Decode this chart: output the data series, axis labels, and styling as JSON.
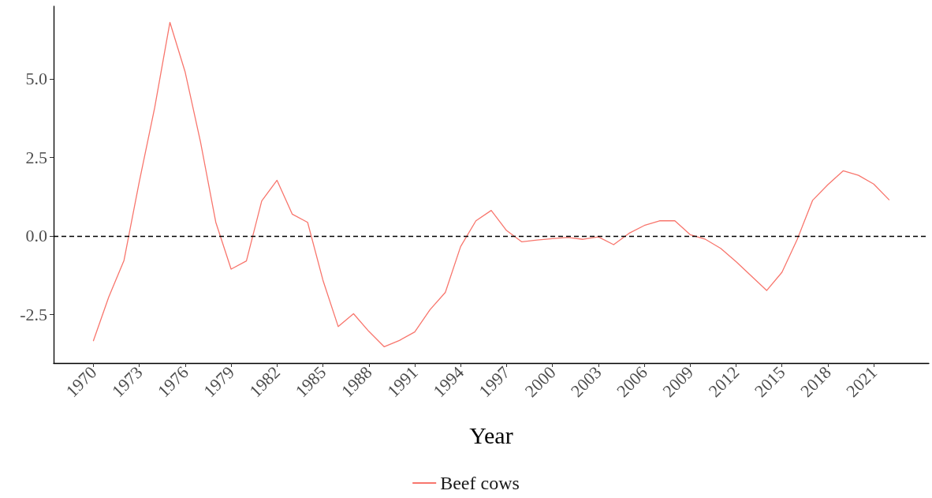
{
  "chart_data": {
    "type": "line",
    "xlabel": "Year",
    "x": [
      1970,
      1971,
      1972,
      1973,
      1974,
      1975,
      1976,
      1977,
      1978,
      1979,
      1980,
      1981,
      1982,
      1983,
      1984,
      1985,
      1986,
      1987,
      1988,
      1989,
      1990,
      1991,
      1992,
      1993,
      1994,
      1995,
      1996,
      1997,
      1998,
      1999,
      2000,
      2001,
      2002,
      2003,
      2004,
      2005,
      2006,
      2007,
      2008,
      2009,
      2010,
      2011,
      2012,
      2013,
      2014,
      2015,
      2016,
      2017,
      2018,
      2019,
      2020,
      2021,
      2022
    ],
    "series": [
      {
        "name": "Beef cows",
        "color": "#f8766d",
        "values": [
          -3.34,
          -1.95,
          -0.78,
          1.73,
          4.07,
          6.8,
          5.21,
          2.99,
          0.43,
          -1.06,
          -0.8,
          1.11,
          1.77,
          0.69,
          0.43,
          -1.41,
          -2.89,
          -2.48,
          -3.04,
          -3.53,
          -3.33,
          -3.06,
          -2.35,
          -1.8,
          -0.34,
          0.48,
          0.81,
          0.17,
          -0.19,
          -0.13,
          -0.09,
          -0.05,
          -0.11,
          -0.03,
          -0.28,
          0.08,
          0.33,
          0.48,
          0.48,
          0.04,
          -0.11,
          -0.4,
          -0.82,
          -1.28,
          -1.74,
          -1.16,
          -0.11,
          1.13,
          1.63,
          2.07,
          1.93,
          1.65,
          1.15
        ]
      }
    ],
    "xlim": [
      1967.4,
      2024.6
    ],
    "xticks": [
      1970,
      1973,
      1976,
      1979,
      1982,
      1985,
      1988,
      1991,
      1994,
      1997,
      2000,
      2003,
      2006,
      2009,
      2012,
      2015,
      2018,
      2021
    ],
    "ylim": [
      -4.05,
      7.31
    ],
    "yticks": [
      {
        "value": -2.5,
        "label": "-2.5"
      },
      {
        "value": 0,
        "label": "0.0"
      },
      {
        "value": 2.5,
        "label": "2.5"
      },
      {
        "value": 5,
        "label": "5.0"
      }
    ],
    "ref_lines": [
      {
        "axis": "y",
        "value": 0,
        "color": "#000000",
        "line_style": "dashed"
      }
    ],
    "grid": false,
    "legend": "bottom",
    "marker": "none",
    "line_style": "solid"
  }
}
